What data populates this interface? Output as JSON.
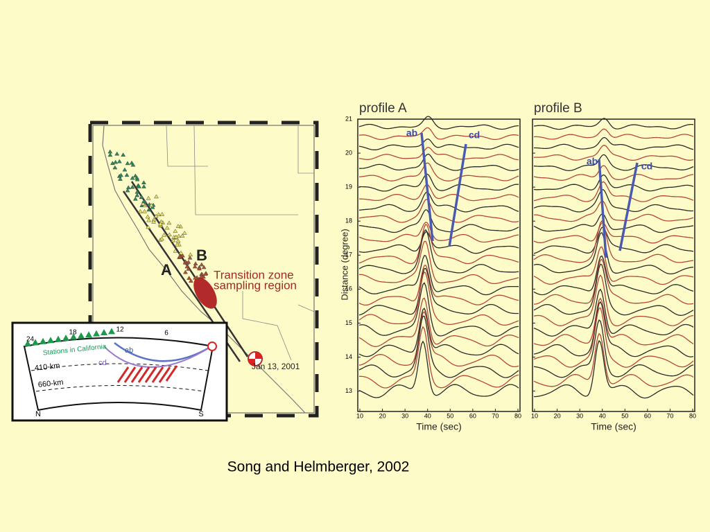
{
  "caption": "Song and Helmberger, 2002",
  "map": {
    "path_a": "A",
    "path_b": "B",
    "region_label": [
      "Transition zone",
      "sampling region"
    ],
    "event_date": "Jan 13, 2001"
  },
  "inset": {
    "stations_label": "Stations in California",
    "distance_labels": [
      24,
      18,
      12,
      6
    ],
    "ray_labels": [
      "ab",
      "cd"
    ],
    "depth_labels": [
      "410-km",
      "660-km"
    ],
    "north": "N",
    "south": "S"
  },
  "profiles": [
    {
      "title": "profile A",
      "phase_labels": [
        "ab",
        "cd"
      ]
    },
    {
      "title": "profile B",
      "phase_labels": [
        "ab",
        "cd"
      ]
    }
  ],
  "x_axis": {
    "label": "Time (sec)",
    "lim": [
      10,
      80
    ],
    "ticks": [
      10,
      20,
      30,
      40,
      50,
      60,
      70,
      80
    ]
  },
  "y_axis": {
    "label": "Distance (degree)",
    "lim": [
      12.4,
      21
    ],
    "ticks": [
      13,
      14,
      15,
      16,
      17,
      18,
      19,
      20,
      21
    ]
  }
}
